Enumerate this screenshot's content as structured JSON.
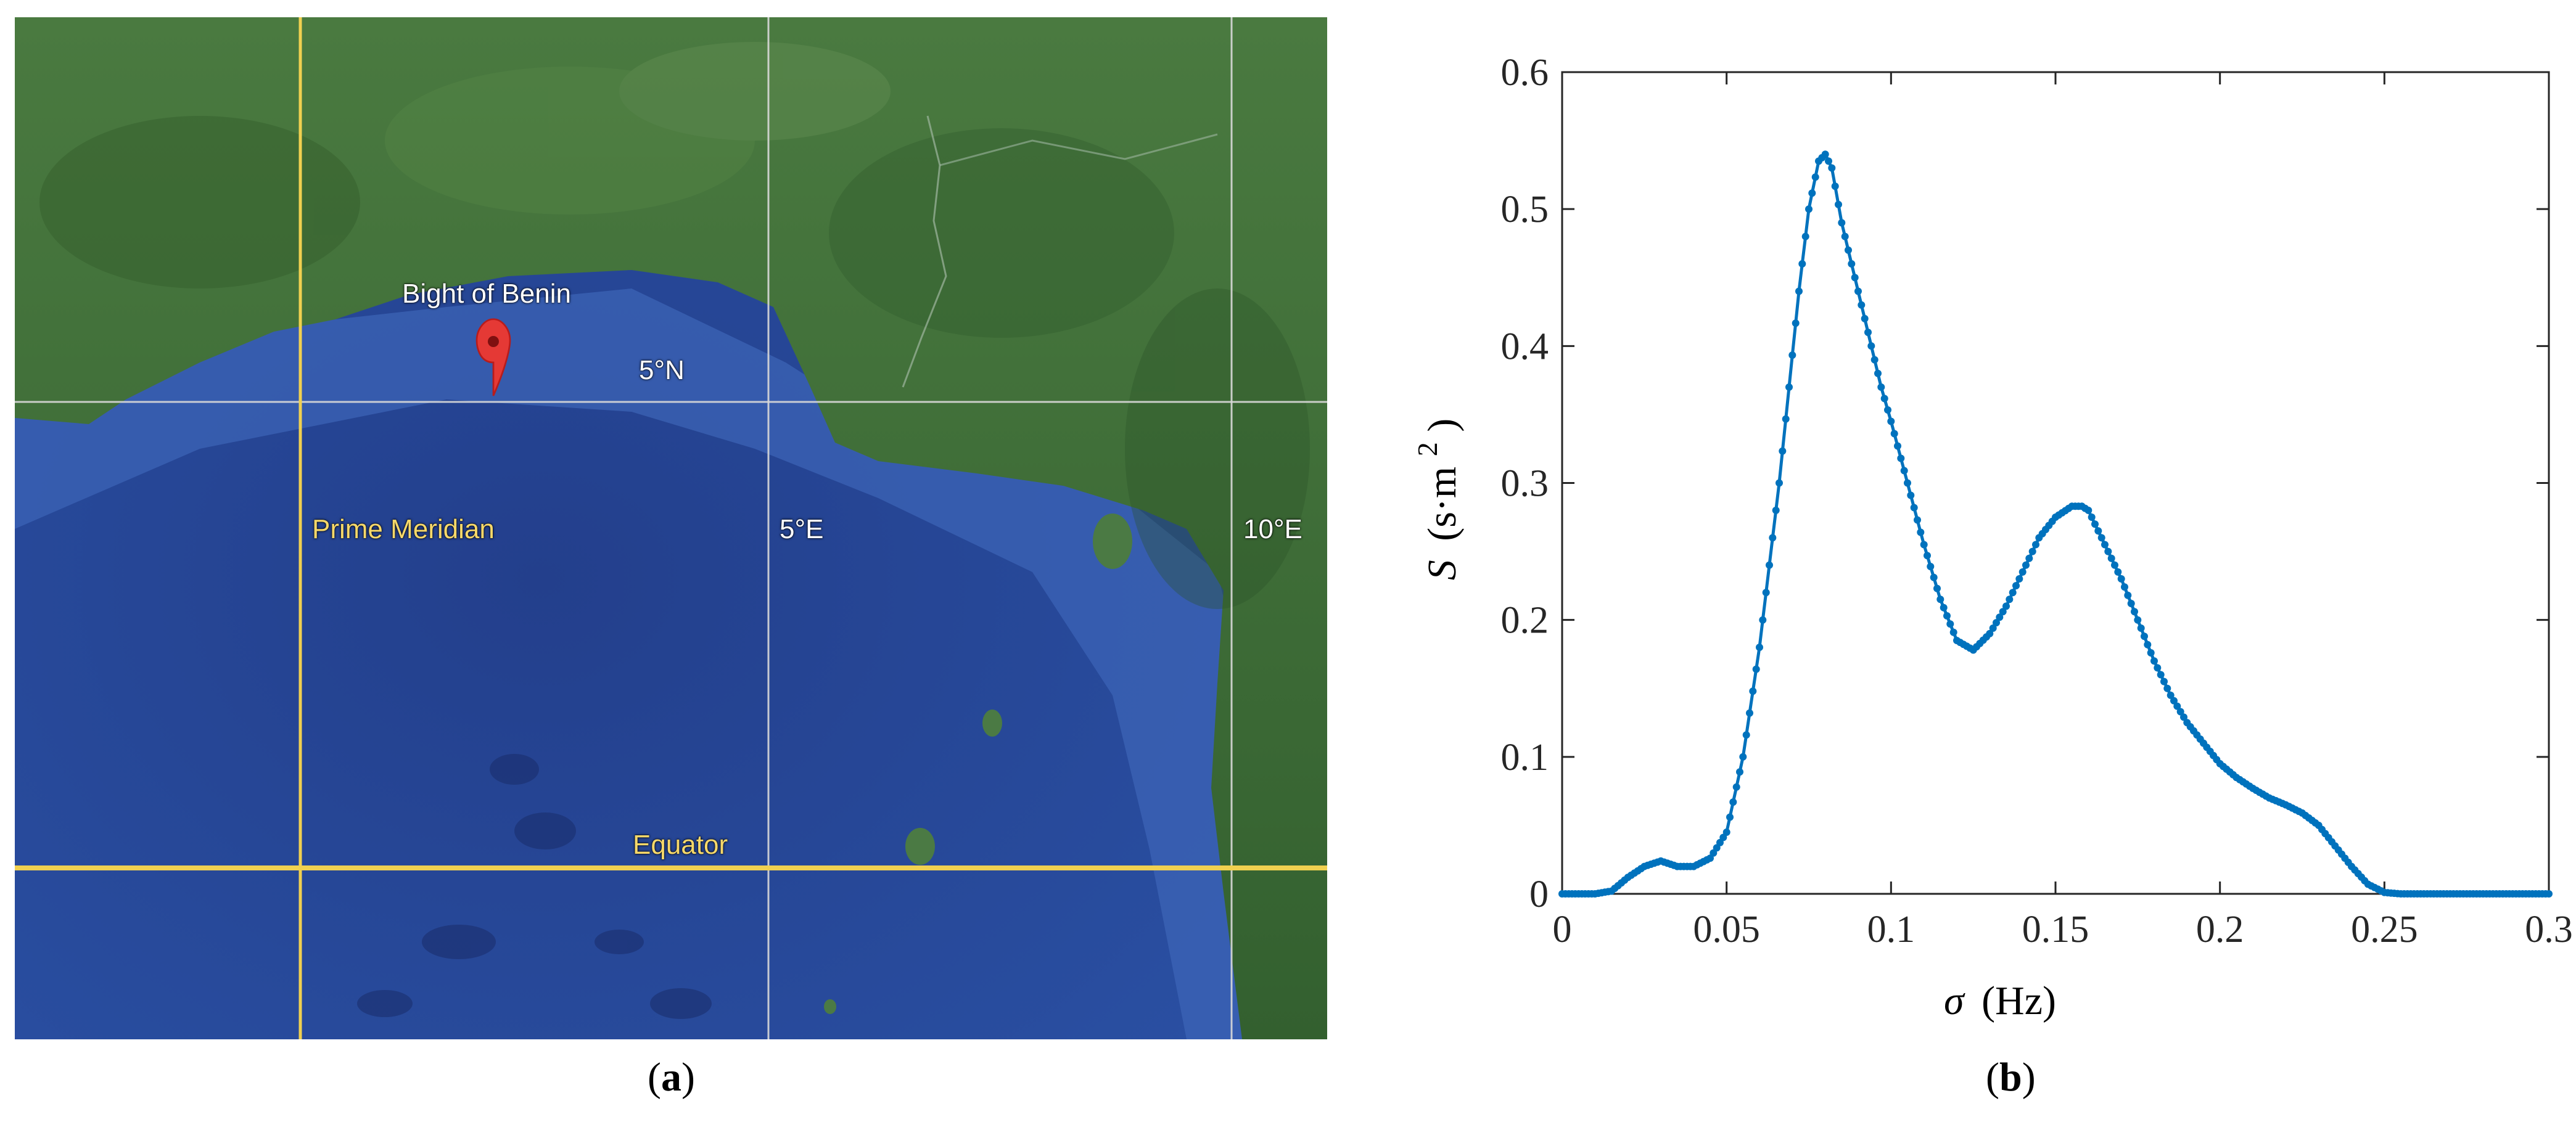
{
  "figure": {
    "panel_a": {
      "caption_letter": "a",
      "labels": {
        "bight": "Bight of Benin",
        "lat5n": "5°N",
        "prime_meridian": "Prime Meridian",
        "lon5e": "5°E",
        "lon10e": "10°E",
        "equator": "Equator"
      },
      "marker_icon": "map-pin-icon",
      "colors": {
        "ocean": "#2a4fa0",
        "land": "#3d6b37",
        "gridline": "#f0d050",
        "marker": "#e53935"
      }
    },
    "panel_b": {
      "caption_letter": "b"
    }
  },
  "chart_data": {
    "type": "line",
    "title": "",
    "xlabel_symbol": "σ",
    "xlabel_unit": "(Hz)",
    "ylabel_symbol": "S",
    "ylabel_unit": "(s·m",
    "ylabel_unit_exp": "2",
    "ylabel_unit_close": ")",
    "xlim": [
      0,
      0.3
    ],
    "ylim": [
      0,
      0.6
    ],
    "xticks": [
      0,
      0.05,
      0.1,
      0.15,
      0.2,
      0.25,
      0.3
    ],
    "xtick_labels": [
      "0",
      "0.05",
      "0.1",
      "0.15",
      "0.2",
      "0.25",
      "0.3"
    ],
    "yticks": [
      0,
      0.1,
      0.2,
      0.3,
      0.4,
      0.5,
      0.6
    ],
    "ytick_labels": [
      "0",
      "0.1",
      "0.2",
      "0.3",
      "0.4",
      "0.5",
      "0.6"
    ],
    "grid": false,
    "color": "#0072bd",
    "series": [
      {
        "x": [
          0,
          0.005,
          0.01,
          0.015,
          0.02,
          0.025,
          0.03,
          0.035,
          0.04,
          0.045,
          0.05,
          0.055,
          0.06,
          0.063,
          0.066,
          0.069,
          0.072,
          0.075,
          0.078,
          0.08,
          0.082,
          0.085,
          0.088,
          0.091,
          0.094,
          0.097,
          0.1,
          0.105,
          0.11,
          0.115,
          0.12,
          0.125,
          0.13,
          0.135,
          0.14,
          0.145,
          0.15,
          0.155,
          0.158,
          0.16,
          0.163,
          0.166,
          0.17,
          0.175,
          0.18,
          0.185,
          0.19,
          0.195,
          0.2,
          0.205,
          0.21,
          0.215,
          0.22,
          0.225,
          0.23,
          0.235,
          0.24,
          0.245,
          0.25,
          0.255,
          0.26,
          0.27,
          0.28,
          0.29,
          0.3
        ],
        "y": [
          0,
          0,
          0,
          0.002,
          0.012,
          0.02,
          0.024,
          0.02,
          0.02,
          0.026,
          0.045,
          0.1,
          0.18,
          0.24,
          0.3,
          0.37,
          0.44,
          0.5,
          0.535,
          0.54,
          0.53,
          0.49,
          0.46,
          0.43,
          0.4,
          0.37,
          0.345,
          0.3,
          0.255,
          0.215,
          0.185,
          0.178,
          0.19,
          0.21,
          0.235,
          0.26,
          0.275,
          0.283,
          0.283,
          0.28,
          0.265,
          0.25,
          0.23,
          0.2,
          0.17,
          0.145,
          0.125,
          0.11,
          0.095,
          0.085,
          0.077,
          0.07,
          0.065,
          0.059,
          0.05,
          0.035,
          0.02,
          0.007,
          0.001,
          0,
          0,
          0,
          0,
          0,
          0
        ]
      }
    ]
  }
}
